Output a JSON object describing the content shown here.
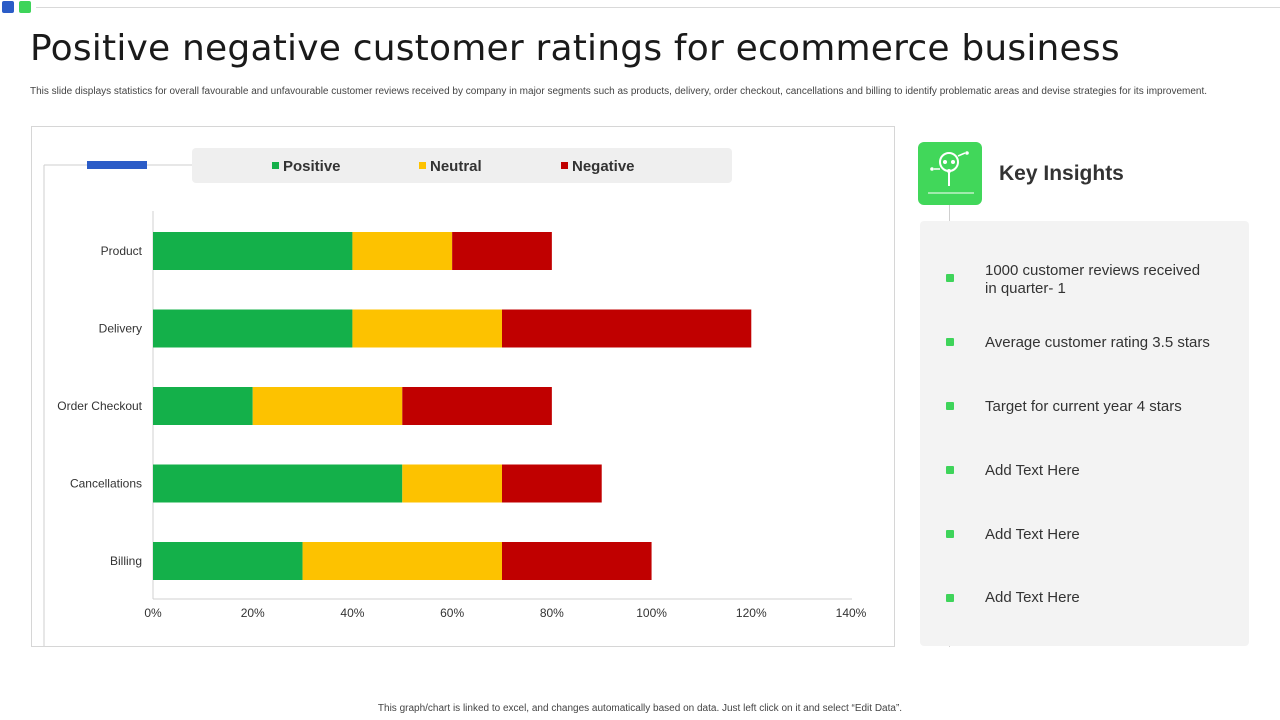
{
  "title": "Positive negative customer ratings for ecommerce business",
  "subtitle": "This slide displays statistics for overall favourable and unfavourable customer reviews received by company in major  segments such as products, delivery, order checkout, cancellations and billing to identify problematic  areas and devise strategies for its improvement.",
  "chart_data": {
    "type": "bar",
    "orientation": "horizontal",
    "stacked": true,
    "categories": [
      "Product",
      "Delivery",
      "Order Checkout",
      "Cancellations",
      "Billing"
    ],
    "series": [
      {
        "name": "Positive",
        "color": "#14b04a",
        "values": [
          40,
          40,
          20,
          50,
          30
        ]
      },
      {
        "name": "Neutral",
        "color": "#fdc200",
        "values": [
          20,
          30,
          30,
          20,
          40
        ]
      },
      {
        "name": "Negative",
        "color": "#c00000",
        "values": [
          20,
          50,
          30,
          20,
          30
        ]
      }
    ],
    "x_ticks": [
      "0%",
      "20%",
      "40%",
      "60%",
      "80%",
      "100%",
      "120%",
      "140%"
    ],
    "xlim": [
      0,
      140
    ],
    "legend_position": "top"
  },
  "insights": {
    "title": "Key Insights",
    "items": [
      "1000 customer reviews received in quarter- 1",
      "Average customer rating 3.5 stars",
      "Target for current year 4 stars",
      "Add Text Here",
      "Add Text Here",
      "Add Text Here"
    ]
  },
  "footer": "This graph/chart is linked to excel, and changes automatically based on data. Just left click on it and select “Edit Data”."
}
